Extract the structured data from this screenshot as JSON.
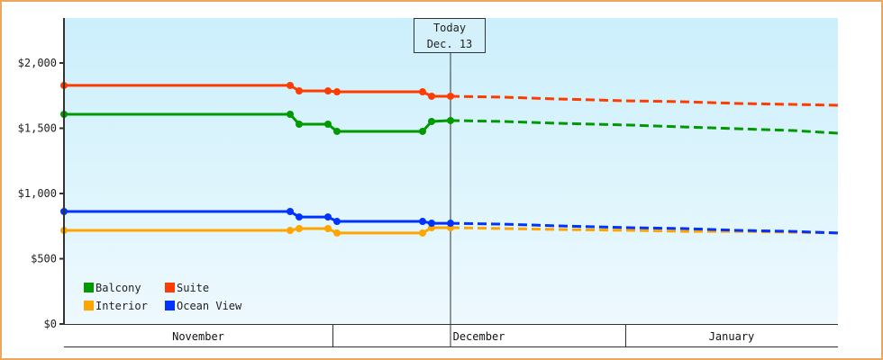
{
  "chart_data": {
    "type": "line",
    "title": "",
    "xlabel": "",
    "ylabel": "",
    "ylim": [
      0,
      2340
    ],
    "y_ticks": [
      {
        "value": 0,
        "label": "$0"
      },
      {
        "value": 500,
        "label": "$500"
      },
      {
        "value": 1000,
        "label": "$1,000"
      },
      {
        "value": 1500,
        "label": "$1,500"
      },
      {
        "value": 2000,
        "label": "$2,000"
      }
    ],
    "x_months": [
      {
        "label": "November",
        "start": 71,
        "end": 369
      },
      {
        "label": "December",
        "start": 369,
        "end": 694
      },
      {
        "label": "January",
        "start": 694,
        "end": 930
      }
    ],
    "today_marker": {
      "line1": "Today",
      "line2": "Dec. 13",
      "x": 500
    },
    "grid": false,
    "legend_position": "bottom-left inside plot",
    "series": [
      {
        "name": "Suite",
        "color": "#ff3c00",
        "actual": [
          [
            71,
            1828
          ],
          [
            322,
            1828
          ],
          [
            332,
            1786
          ],
          [
            364,
            1786
          ],
          [
            374,
            1779
          ],
          [
            469,
            1779
          ],
          [
            479,
            1745
          ],
          [
            500,
            1745
          ]
        ],
        "forecast": [
          [
            500,
            1745
          ],
          [
            560,
            1738
          ],
          [
            620,
            1724
          ],
          [
            700,
            1710
          ],
          [
            760,
            1703
          ],
          [
            820,
            1690
          ],
          [
            880,
            1683
          ],
          [
            930,
            1676
          ]
        ]
      },
      {
        "name": "Balcony",
        "color": "#009900",
        "actual": [
          [
            71,
            1607
          ],
          [
            322,
            1607
          ],
          [
            332,
            1531
          ],
          [
            364,
            1531
          ],
          [
            374,
            1476
          ],
          [
            469,
            1476
          ],
          [
            479,
            1552
          ],
          [
            500,
            1559
          ]
        ],
        "forecast": [
          [
            500,
            1559
          ],
          [
            560,
            1552
          ],
          [
            620,
            1538
          ],
          [
            700,
            1524
          ],
          [
            760,
            1510
          ],
          [
            820,
            1496
          ],
          [
            880,
            1483
          ],
          [
            930,
            1462
          ]
        ]
      },
      {
        "name": "Ocean View",
        "color": "#0033ff",
        "actual": [
          [
            71,
            862
          ],
          [
            322,
            862
          ],
          [
            332,
            820
          ],
          [
            364,
            820
          ],
          [
            374,
            786
          ],
          [
            469,
            786
          ],
          [
            479,
            772
          ],
          [
            500,
            772
          ]
        ],
        "forecast": [
          [
            500,
            772
          ],
          [
            560,
            765
          ],
          [
            620,
            752
          ],
          [
            700,
            738
          ],
          [
            760,
            731
          ],
          [
            820,
            717
          ],
          [
            880,
            710
          ],
          [
            930,
            697
          ]
        ]
      },
      {
        "name": "Interior",
        "color": "#ffa500",
        "actual": [
          [
            71,
            717
          ],
          [
            322,
            717
          ],
          [
            332,
            731
          ],
          [
            364,
            731
          ],
          [
            374,
            697
          ],
          [
            469,
            697
          ],
          [
            479,
            738
          ],
          [
            500,
            738
          ]
        ],
        "forecast": [
          [
            500,
            738
          ],
          [
            560,
            731
          ],
          [
            620,
            724
          ],
          [
            700,
            717
          ],
          [
            760,
            710
          ],
          [
            820,
            710
          ],
          [
            880,
            703
          ],
          [
            930,
            697
          ]
        ]
      }
    ],
    "legend": [
      {
        "label": "Balcony",
        "color": "#009900"
      },
      {
        "label": "Suite",
        "color": "#ff3c00"
      },
      {
        "label": "Interior",
        "color": "#ffa500"
      },
      {
        "label": "Ocean View",
        "color": "#0033ff"
      }
    ]
  }
}
